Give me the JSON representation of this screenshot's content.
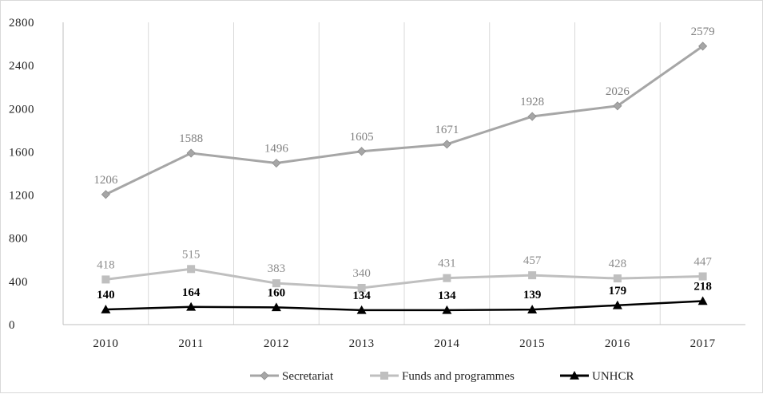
{
  "chart_data": {
    "type": "line",
    "categories": [
      "2010",
      "2011",
      "2012",
      "2013",
      "2014",
      "2015",
      "2016",
      "2017"
    ],
    "ylim": [
      0,
      2800
    ],
    "yticks": [
      0,
      400,
      800,
      1200,
      1600,
      2000,
      2400,
      2800
    ],
    "grid": "vertical",
    "legend": "bottom",
    "series": [
      {
        "name": "Secretariat",
        "values": [
          1206,
          1588,
          1496,
          1605,
          1671,
          1928,
          2026,
          2579
        ],
        "color": "#a6a6a6",
        "marker": "diamond"
      },
      {
        "name": "Funds and programmes",
        "values": [
          418,
          515,
          383,
          340,
          431,
          457,
          428,
          447
        ],
        "color": "#bfbfbf",
        "marker": "square"
      },
      {
        "name": "UNHCR",
        "values": [
          140,
          164,
          160,
          134,
          134,
          139,
          179,
          218
        ],
        "color": "#000000",
        "marker": "triangle"
      }
    ]
  }
}
